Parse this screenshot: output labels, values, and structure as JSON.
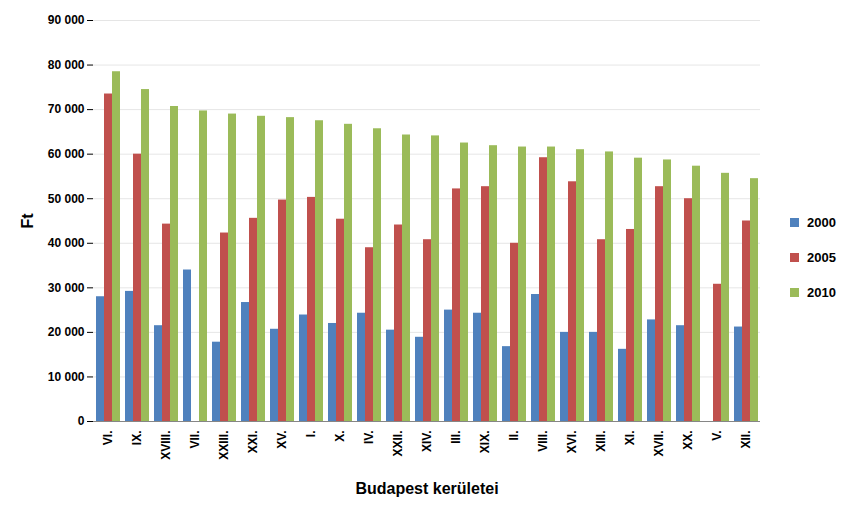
{
  "chart_data": {
    "type": "bar",
    "x_label": "Budapest kerületei",
    "y_label": "Ft",
    "categories": [
      "VI.",
      "IX.",
      "XVIII.",
      "VII.",
      "XXIII.",
      "XXI.",
      "XV.",
      "I.",
      "X.",
      "IV.",
      "XXII.",
      "XIV.",
      "III.",
      "XIX.",
      "II.",
      "VIII.",
      "XVI.",
      "XIII.",
      "XI.",
      "XVII.",
      "XX.",
      "V.",
      "XII."
    ],
    "series": [
      {
        "name": "2000",
        "color": "#4F81BD",
        "values": [
          28000,
          29200,
          21500,
          34000,
          17800,
          26700,
          20700,
          23900,
          22000,
          24300,
          20500,
          18900,
          25000,
          24300,
          16800,
          28500,
          20000,
          20000,
          16200,
          22800,
          21500,
          null,
          21200
        ]
      },
      {
        "name": "2005",
        "color": "#C0504D",
        "values": [
          73500,
          60000,
          44300,
          null,
          42300,
          45600,
          49700,
          50300,
          45400,
          39000,
          44100,
          40800,
          52200,
          52700,
          40000,
          59200,
          53800,
          40800,
          43100,
          52700,
          50000,
          30800,
          45000
        ]
      },
      {
        "name": "2010",
        "color": "#9BBB59",
        "values": [
          78500,
          74500,
          70700,
          69700,
          69000,
          68500,
          68200,
          67500,
          66700,
          65700,
          64300,
          64100,
          62500,
          61900,
          61600,
          61600,
          61000,
          60500,
          59100,
          58700,
          57300,
          55700,
          54500
        ]
      }
    ],
    "ylim": [
      0,
      90000
    ],
    "yticks": [
      0,
      {
        "value": 10000,
        "label": "10 000"
      },
      {
        "value": 20000,
        "label": "20 000"
      },
      {
        "value": 30000,
        "label": "30 000"
      },
      {
        "value": 40000,
        "label": "40 000"
      },
      {
        "value": 50000,
        "label": "50 000"
      },
      {
        "value": 60000,
        "label": "60 000"
      },
      {
        "value": 70000,
        "label": "70 000"
      },
      {
        "value": 80000,
        "label": "80 000"
      },
      {
        "value": 90000,
        "label": "90 000"
      }
    ],
    "grid": true,
    "legend": "right"
  }
}
